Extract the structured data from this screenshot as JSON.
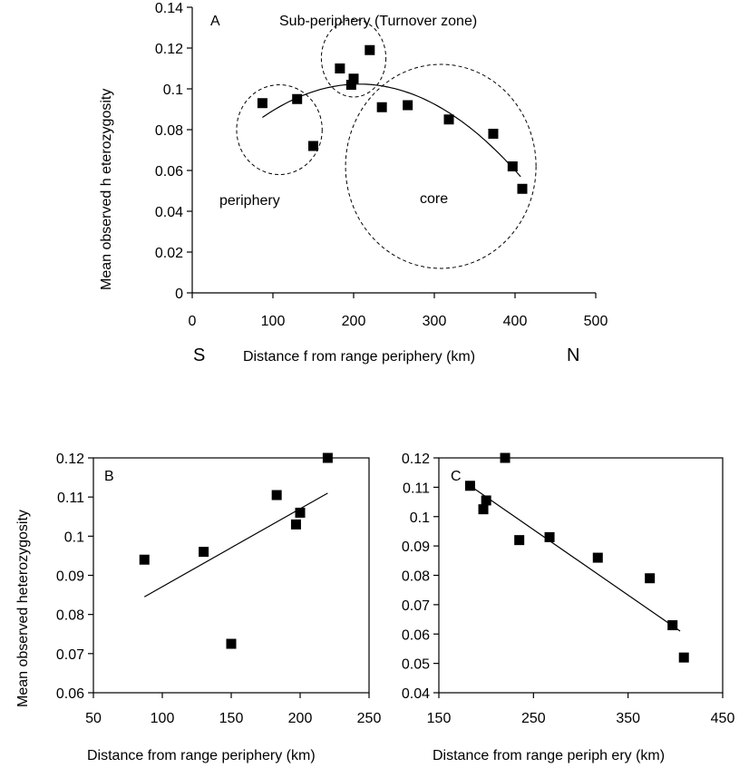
{
  "figure_ylabel": "Mean observed heterozygosity",
  "chart_data": [
    {
      "id": "A",
      "type": "scatter",
      "panel_label": "A",
      "xlabel": "Distance f rom range periphery (km)",
      "ylabel": "Mean observed h eterozygosity",
      "xlim": [
        0,
        500
      ],
      "ylim": [
        0,
        0.14
      ],
      "x_ticks": [
        "0",
        "100",
        "200",
        "300",
        "400",
        "500"
      ],
      "y_ticks": [
        "0",
        "0.02",
        "0.04",
        "0.06",
        "0.08",
        "0.1",
        "0.12",
        "0.14"
      ],
      "direction_left": "S",
      "direction_right": "N",
      "grid": false,
      "points": [
        {
          "x": 87,
          "y": 0.093
        },
        {
          "x": 130,
          "y": 0.095
        },
        {
          "x": 150,
          "y": 0.072
        },
        {
          "x": 183,
          "y": 0.11
        },
        {
          "x": 197,
          "y": 0.102
        },
        {
          "x": 200,
          "y": 0.105
        },
        {
          "x": 220,
          "y": 0.119
        },
        {
          "x": 235,
          "y": 0.091
        },
        {
          "x": 267,
          "y": 0.092
        },
        {
          "x": 318,
          "y": 0.085
        },
        {
          "x": 373,
          "y": 0.078
        },
        {
          "x": 397,
          "y": 0.062
        },
        {
          "x": 409,
          "y": 0.051
        }
      ],
      "trend": {
        "type": "quadratic",
        "x_range": [
          87,
          409
        ],
        "points": [
          {
            "x": 87,
            "y": 0.086
          },
          {
            "x": 190,
            "y": 0.102
          },
          {
            "x": 409,
            "y": 0.056
          }
        ]
      },
      "annotations": {
        "sub_periphery": "Sub-periphery (Turnover zone)",
        "periphery": "periphery",
        "core": "core"
      },
      "regions": [
        {
          "name": "periphery",
          "center": [
            108,
            0.08
          ],
          "radius_x_units": 53,
          "radius_y_units": 0.022
        },
        {
          "name": "sub-periphery",
          "center": [
            200,
            0.115
          ],
          "radius_x_units": 40,
          "radius_y_units": 0.019
        },
        {
          "name": "core",
          "center": [
            308,
            0.062
          ],
          "radius_x_units": 118,
          "radius_y_units": 0.05
        }
      ]
    },
    {
      "id": "B",
      "type": "scatter",
      "panel_label": "B",
      "xlabel": "Distance from range periphery (km)",
      "xlim": [
        50,
        250
      ],
      "ylim": [
        0.06,
        0.12
      ],
      "x_ticks": [
        "50",
        "100",
        "150",
        "200",
        "250"
      ],
      "y_ticks": [
        "0.06",
        "0.07",
        "0.08",
        "0.09",
        "0.1",
        "0.11",
        "0.12"
      ],
      "grid": false,
      "points": [
        {
          "x": 87,
          "y": 0.094
        },
        {
          "x": 130,
          "y": 0.096
        },
        {
          "x": 150,
          "y": 0.0725
        },
        {
          "x": 183,
          "y": 0.1105
        },
        {
          "x": 197,
          "y": 0.103
        },
        {
          "x": 200,
          "y": 0.106
        },
        {
          "x": 220,
          "y": 0.12
        }
      ],
      "trend": {
        "type": "linear",
        "points": [
          {
            "x": 87,
            "y": 0.0845
          },
          {
            "x": 220,
            "y": 0.111
          }
        ]
      }
    },
    {
      "id": "C",
      "type": "scatter",
      "panel_label": "C",
      "xlabel": "Distance from range periph ery (km)",
      "xlim": [
        150,
        450
      ],
      "ylim": [
        0.04,
        0.12
      ],
      "x_ticks": [
        "150",
        "250",
        "350",
        "450"
      ],
      "y_ticks": [
        "0.04",
        "0.05",
        "0.06",
        "0.07",
        "0.08",
        "0.09",
        "0.1",
        "0.11",
        "0.12"
      ],
      "grid": false,
      "points": [
        {
          "x": 183,
          "y": 0.1105
        },
        {
          "x": 197,
          "y": 0.1025
        },
        {
          "x": 200,
          "y": 0.1055
        },
        {
          "x": 220,
          "y": 0.12
        },
        {
          "x": 235,
          "y": 0.092
        },
        {
          "x": 267,
          "y": 0.093
        },
        {
          "x": 318,
          "y": 0.086
        },
        {
          "x": 373,
          "y": 0.079
        },
        {
          "x": 397,
          "y": 0.063
        },
        {
          "x": 409,
          "y": 0.052
        }
      ],
      "trend": {
        "type": "linear",
        "points": [
          {
            "x": 183,
            "y": 0.1105
          },
          {
            "x": 405,
            "y": 0.061
          }
        ]
      }
    }
  ]
}
